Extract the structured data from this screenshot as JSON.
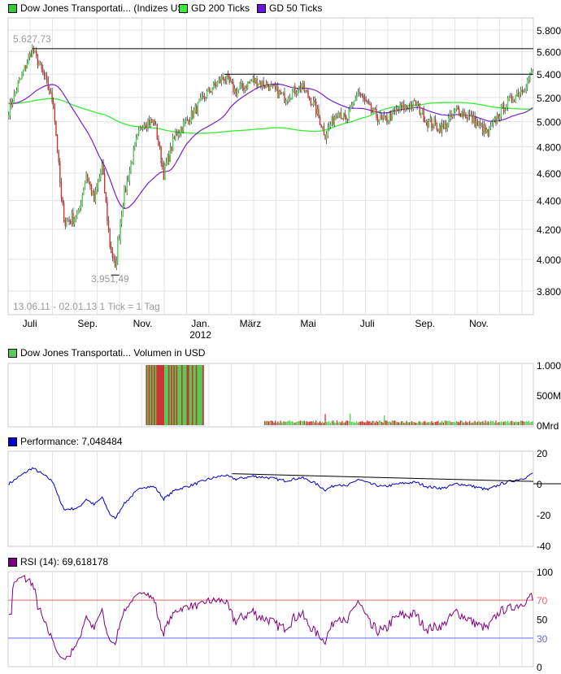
{
  "legend": {
    "main": "Dow Jones Transportati... (Indizes US)",
    "gd200": "GD 200 Ticks",
    "gd50": "GD 50 Ticks",
    "volume": "Dow Jones Transportati... Volumen in USD",
    "performance": "Performance: 7,048484",
    "rsi": "RSI (14): 69,618178"
  },
  "colors": {
    "main": "#33cc33",
    "gd200": "#33ee33",
    "gd50": "#7a1fcc",
    "up": "#55cc55",
    "down": "#cc3333",
    "perf": "#0000cc",
    "rsi": "#800080",
    "rsi_hi": "#ee6666",
    "rsi_lo": "#6666ee"
  },
  "chart_data": [
    {
      "type": "candlestick",
      "title": "Dow Jones Transportation",
      "period": "13.06.11 - 02.01.13",
      "tick_info": "1 Tick = 1 Tag",
      "max_label": "5.627,73",
      "min_label": "3.951,49",
      "max": 5627.73,
      "min": 3951.49,
      "y_ticks": [
        "5.800",
        "5.600",
        "5.400",
        "5.200",
        "5.000",
        "4.800",
        "4.600",
        "4.400",
        "4.200",
        "4.000",
        "3.800"
      ],
      "y_tick_values": [
        5800,
        5600,
        5400,
        5200,
        5000,
        4800,
        4600,
        4400,
        4200,
        4000,
        3800
      ],
      "x_ticks": [
        {
          "label": "Juli",
          "day": 16
        },
        {
          "label": "Sep.",
          "day": 60
        },
        {
          "label": "Nov.",
          "day": 102
        },
        {
          "label": "Jan.",
          "sub": "2012",
          "day": 146
        },
        {
          "label": "März",
          "day": 184
        },
        {
          "label": "Mai",
          "day": 228
        },
        {
          "label": "Juli",
          "day": 273
        },
        {
          "label": "Sep.",
          "day": 317
        },
        {
          "label": "Nov.",
          "day": 358
        }
      ],
      "days": 400,
      "resistance_level": 5400,
      "close_anchors": [
        [
          0,
          5100
        ],
        [
          12,
          5450
        ],
        [
          18,
          5627
        ],
        [
          28,
          5350
        ],
        [
          34,
          5150
        ],
        [
          40,
          4400
        ],
        [
          43,
          4250
        ],
        [
          53,
          4300
        ],
        [
          59,
          4600
        ],
        [
          65,
          4400
        ],
        [
          71,
          4650
        ],
        [
          77,
          4100
        ],
        [
          81,
          3951
        ],
        [
          87,
          4400
        ],
        [
          96,
          4800
        ],
        [
          102,
          5000
        ],
        [
          111,
          5000
        ],
        [
          118,
          4600
        ],
        [
          127,
          4900
        ],
        [
          139,
          5050
        ],
        [
          152,
          5250
        ],
        [
          164,
          5380
        ],
        [
          173,
          5250
        ],
        [
          186,
          5350
        ],
        [
          198,
          5300
        ],
        [
          210,
          5200
        ],
        [
          223,
          5300
        ],
        [
          232,
          5150
        ],
        [
          241,
          4900
        ],
        [
          251,
          5100
        ],
        [
          257,
          5000
        ],
        [
          266,
          5250
        ],
        [
          275,
          5100
        ],
        [
          285,
          5000
        ],
        [
          297,
          5100
        ],
        [
          310,
          5150
        ],
        [
          319,
          5000
        ],
        [
          331,
          4950
        ],
        [
          341,
          5100
        ],
        [
          350,
          5050
        ],
        [
          365,
          4900
        ],
        [
          375,
          5100
        ],
        [
          384,
          5200
        ],
        [
          393,
          5300
        ],
        [
          399,
          5430
        ]
      ]
    },
    {
      "type": "bar",
      "title": "Volumen in USD",
      "y_ticks": [
        "1.000",
        "500M",
        "0Mrd"
      ],
      "y_tick_values": [
        1000,
        500,
        0
      ],
      "unit": "Mio USD"
    },
    {
      "type": "line",
      "title": "Performance",
      "last": 7.048484,
      "y_ticks": [
        "20",
        "0",
        "-20",
        "-40"
      ],
      "y_tick_values": [
        20,
        0,
        -20,
        -40
      ]
    },
    {
      "type": "line",
      "title": "RSI (14)",
      "last": 69.618178,
      "y_ticks": [
        "100",
        "70",
        "50",
        "30",
        "0"
      ],
      "y_tick_values": [
        100,
        70,
        50,
        30,
        0
      ]
    }
  ]
}
